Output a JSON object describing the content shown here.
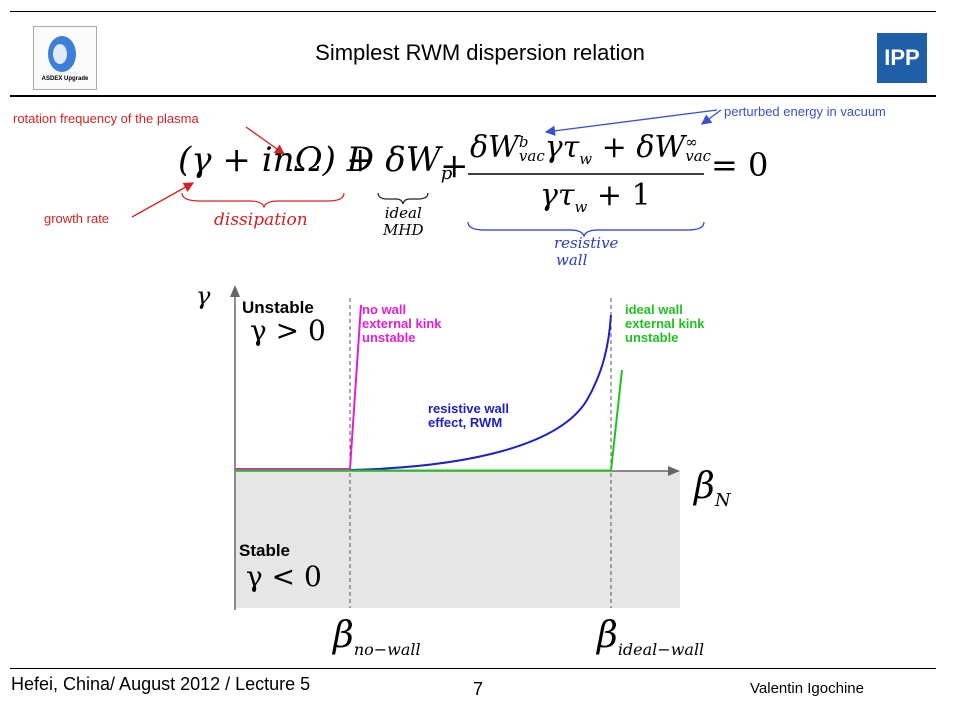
{
  "header": {
    "title": "Simplest RWM dispersion relation",
    "logo_left_text": "ASDEX Upgrade",
    "logo_right_text": "IPP"
  },
  "annotations": {
    "rotation": "rotation frequency of the plasma",
    "growth": "growth rate",
    "vacuum": "perturbed energy in vacuum"
  },
  "equation": {
    "term1": "(γ + inΩ) D",
    "term2": "+ δW",
    "term2_sub": "p",
    "term3_num_a": "δW",
    "term3_num_a_sup": "b",
    "term3_num_a_sub": "vac",
    "term3_num_b": "γτ",
    "term3_num_b_sub": "w",
    "term3_num_c": "+ δW",
    "term3_num_c_sup": "∞",
    "term3_num_c_sub": "vac",
    "term3_den": "γτ",
    "term3_den_sub": "w",
    "term3_den_tail": "+ 1",
    "plus": "+",
    "equals": "= 0",
    "brace1": "dissipation",
    "brace2_line1": "ideal",
    "brace2_line2": "MHD",
    "brace3_line1": "resistive",
    "brace3_line2": "wall"
  },
  "plot": {
    "y_axis_label": "γ",
    "x_axis_label": "β",
    "x_axis_sub": "N",
    "unstable_title": "Unstable",
    "unstable_cond": "γ > 0",
    "stable_title": "Stable",
    "stable_cond": "γ < 0",
    "no_wall_text": "no wall\nexternal kink\nunstable",
    "ideal_wall_text": "ideal wall\nexternal kink\nunstable",
    "rwm_text": "resistive wall\neffect, RWM",
    "beta_no_wall": "β",
    "beta_no_wall_sub": "no−wall",
    "beta_ideal_wall": "β",
    "beta_ideal_wall_sub": "ideal−wall",
    "colors": {
      "no_wall": "#e020d0",
      "ideal_wall": "#20c020",
      "rwm": "#2020c0",
      "stable_fill": "#e6e6e6"
    }
  },
  "footer": {
    "left": "Hefei, China/ August 2012 / Lecture 5",
    "page": "7",
    "right": "Valentin Igochine"
  }
}
